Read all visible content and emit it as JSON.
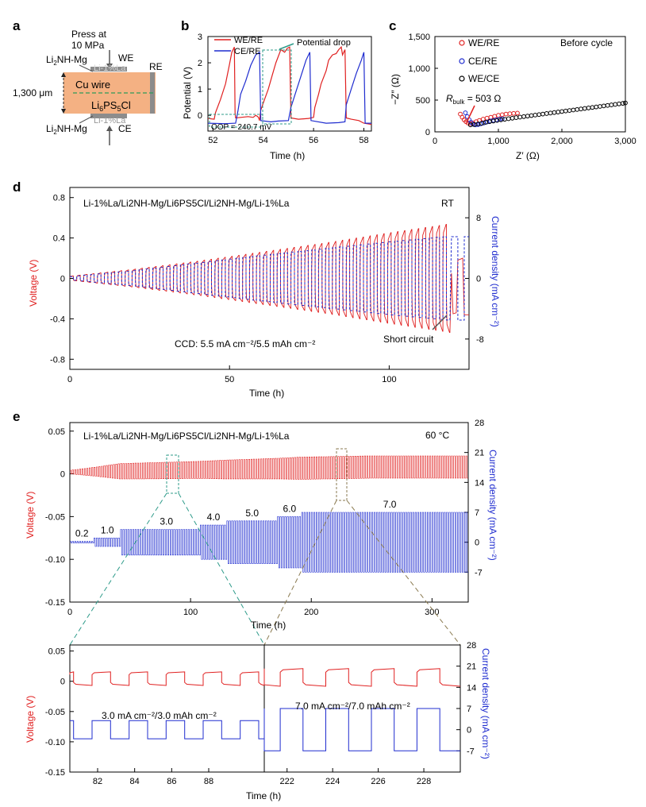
{
  "panels": {
    "a": {
      "letter": "a",
      "press_line1": "Press at",
      "press_line2": "10 MPa",
      "we": "WE",
      "re": "RE",
      "ce": "CE",
      "li_top": "Li-1%La",
      "li_bottom": "Li-1%La",
      "li2nh_top": "Li",
      "li2nh_top_sub": "2",
      "li2nh_top_rest": "NH-Mg",
      "li2nh_bottom": "Li",
      "li2nh_bottom_sub": "2",
      "li2nh_bottom_rest": "NH-Mg",
      "cu_wire": "Cu wire",
      "lps_main": "Li",
      "lps_sub1": "6",
      "lps_mid": "PS",
      "lps_sub2": "5",
      "lps_end": "Cl",
      "thickness": "1,300 μm",
      "colors": {
        "pellet": "#f4b183",
        "electrode": "#8c8c8c",
        "cu": "#2e9b5a"
      }
    },
    "b": {
      "letter": "b",
      "annotation_drop": "Potential drop",
      "annotation_oop": "OOP = 240.7 mV"
    },
    "c": {
      "letter": "c",
      "annotation": "Before cycle",
      "rbulk_main": "R",
      "rbulk_sub": "bulk",
      "rbulk_value": " = 503 Ω"
    },
    "d": {
      "letter": "d",
      "cell": "Li-1%La/Li2NH-Mg/Li6PS5Cl/Li2NH-Mg/Li-1%La",
      "temp": "RT",
      "ccd_text": "CCD: 5.5 mA cm⁻²/5.5 mAh cm⁻²",
      "short_circuit": "Short circuit"
    },
    "e": {
      "letter": "e",
      "cell": "Li-1%La/Li2NH-Mg/Li6PS5Cl/Li2NH-Mg/Li-1%La",
      "temp": "60 °C",
      "inset_left_label": "3.0 mA cm⁻²/3.0 mAh cm⁻²",
      "inset_right_label": "7.0 mA cm⁻²/7.0 mAh cm⁻²"
    }
  },
  "chart_data": [
    {
      "id": "b",
      "type": "line",
      "xlabel": "Time (h)",
      "ylabel": "Potential (V)",
      "xlim": [
        51.8,
        58.3
      ],
      "ylim": [
        -0.6,
        3.0
      ],
      "xticks": [
        52,
        54,
        56,
        58
      ],
      "yticks": [
        0,
        1,
        2,
        3
      ],
      "legend": [
        "WE/RE",
        "CE/RE"
      ],
      "series": [
        {
          "name": "WE/RE",
          "color": "#e02020",
          "x": [
            51.8,
            52.05,
            52.1,
            52.3,
            52.5,
            52.65,
            52.75,
            52.85,
            52.88,
            52.9,
            53.1,
            53.4,
            53.6,
            53.7,
            53.78,
            53.82,
            53.85,
            53.9,
            54.05,
            54.2,
            54.35,
            54.5,
            54.7,
            54.85,
            54.95,
            55.05,
            55.1,
            55.4,
            55.8,
            56.0,
            56.05,
            56.2,
            56.3,
            56.5,
            56.6,
            56.75,
            56.9,
            57.0,
            57.1,
            57.15,
            57.25,
            57.3,
            57.5,
            57.8,
            58.0,
            58.3
          ],
          "y": [
            -0.12,
            -0.15,
            0.1,
            0.6,
            1.2,
            1.9,
            2.4,
            2.6,
            0.1,
            -0.1,
            -0.08,
            -0.05,
            -0.08,
            0.0,
            -0.05,
            -0.1,
            -0.2,
            0.2,
            0.6,
            1.0,
            1.5,
            2.0,
            2.5,
            2.4,
            2.55,
            2.6,
            -0.1,
            -0.15,
            -0.12,
            -0.08,
            0.3,
            0.8,
            1.2,
            1.7,
            2.1,
            2.3,
            2.35,
            2.5,
            2.6,
            2.3,
            2.5,
            -0.1,
            -0.15,
            -0.2,
            -0.3,
            -0.35
          ]
        },
        {
          "name": "CE/RE",
          "color": "#1f2ccf",
          "x": [
            51.8,
            52.5,
            52.9,
            53.0,
            53.1,
            53.3,
            53.5,
            53.7,
            53.85,
            53.9,
            54.3,
            54.6,
            55.0,
            55.1,
            55.3,
            55.5,
            55.7,
            55.85,
            55.9,
            56.5,
            57.0,
            57.25,
            57.3,
            57.5,
            57.7,
            57.9,
            58.0,
            58.05,
            58.3
          ],
          "y": [
            -0.3,
            -0.32,
            -0.3,
            0.2,
            0.8,
            1.3,
            1.9,
            2.3,
            2.4,
            -0.2,
            -0.25,
            -0.22,
            -0.2,
            0.3,
            0.9,
            1.5,
            2.1,
            2.4,
            -0.2,
            -0.3,
            -0.28,
            -0.25,
            0.4,
            1.0,
            1.6,
            2.1,
            2.4,
            -0.3,
            -0.3
          ]
        }
      ]
    },
    {
      "id": "c",
      "type": "scatter",
      "xlabel": "Z′ (Ω)",
      "ylabel": "−Z″ (Ω)",
      "xlim": [
        0,
        3000
      ],
      "ylim": [
        0,
        1500
      ],
      "xticks": [
        0,
        1000,
        2000,
        3000
      ],
      "yticks": [
        0,
        500,
        1000,
        1500
      ],
      "legend": [
        "WE/RE",
        "CE/RE",
        "WE/CE"
      ],
      "series": [
        {
          "name": "WE/RE",
          "color": "#e02020",
          "x": [
            400,
            430,
            460,
            490,
            520,
            560,
            600,
            650,
            700,
            760,
            820,
            880,
            940,
            1000,
            1060,
            1120,
            1180,
            1240,
            1300
          ],
          "y": [
            280,
            230,
            190,
            160,
            140,
            130,
            140,
            160,
            180,
            200,
            215,
            230,
            245,
            260,
            270,
            280,
            285,
            290,
            295
          ]
        },
        {
          "name": "CE/RE",
          "color": "#1f2ccf",
          "x": [
            480,
            510,
            540,
            570,
            600,
            640,
            680,
            720,
            770,
            820,
            870,
            920,
            970,
            1020,
            1060
          ],
          "y": [
            300,
            240,
            190,
            150,
            120,
            110,
            115,
            125,
            140,
            155,
            170,
            180,
            190,
            200,
            205
          ]
        },
        {
          "name": "WE/CE",
          "color": "#000000",
          "x": [
            560,
            620,
            680,
            740,
            800,
            860,
            920,
            980,
            1040,
            1100,
            1160,
            1220,
            1280,
            1340,
            1400,
            1460,
            1520,
            1580,
            1640,
            1700,
            1760,
            1820,
            1880,
            1940,
            2000,
            2060,
            2120,
            2180,
            2240,
            2300,
            2360,
            2420,
            2480,
            2540,
            2600,
            2660,
            2720,
            2780,
            2840,
            2900,
            2960,
            3000
          ],
          "y": [
            110,
            115,
            125,
            135,
            150,
            160,
            170,
            180,
            190,
            198,
            207,
            215,
            224,
            232,
            240,
            248,
            256,
            264,
            272,
            280,
            288,
            296,
            304,
            312,
            320,
            328,
            336,
            344,
            352,
            360,
            368,
            376,
            384,
            392,
            400,
            408,
            416,
            424,
            432,
            440,
            448,
            455
          ]
        }
      ]
    },
    {
      "id": "d",
      "type": "line",
      "xlabel": "Time (h)",
      "ylabel": "Voltage (V)",
      "y2label": "Current density (mA cm⁻²)",
      "xlim": [
        0,
        125
      ],
      "ylim": [
        -0.9,
        0.9
      ],
      "y2lim": [
        -12,
        12
      ],
      "xticks": [
        0,
        50,
        100
      ],
      "yticks": [
        -0.8,
        -0.4,
        0,
        0.4,
        0.8
      ],
      "y2ticks": [
        -8,
        0,
        8
      ],
      "series": [
        {
          "name": "Voltage",
          "color": "#e02020",
          "envelope_x": [
            0,
            20,
            40,
            60,
            80,
            100,
            115,
            119
          ],
          "envelope_y": [
            0.02,
            0.09,
            0.17,
            0.26,
            0.35,
            0.45,
            0.52,
            0.54
          ],
          "cycles": 55
        },
        {
          "name": "Current density",
          "color": "#1f2ccf",
          "envelope_x": [
            0,
            20,
            40,
            60,
            80,
            100,
            118,
            125
          ],
          "envelope_y": [
            0.2,
            1.0,
            2.0,
            3.0,
            3.9,
            4.8,
            5.5,
            5.5
          ]
        }
      ]
    },
    {
      "id": "e",
      "type": "line",
      "xlabel": "Time (h)",
      "ylabel": "Voltage (V)",
      "y2label": "Current density (mA cm⁻²)",
      "xlim": [
        0,
        330
      ],
      "ylim": [
        -0.15,
        0.06
      ],
      "y2lim": [
        -14,
        28
      ],
      "xticks": [
        0,
        100,
        200,
        300
      ],
      "yticks": [
        -0.15,
        -0.1,
        -0.05,
        0,
        0.05
      ],
      "y2ticks": [
        -7,
        0,
        7,
        14,
        21,
        28
      ],
      "current_steps": [
        {
          "label": "0.2",
          "x0": 0,
          "x1": 20,
          "value": 0.2
        },
        {
          "label": "1.0",
          "x0": 20,
          "x1": 42,
          "value": 1.0
        },
        {
          "label": "3.0",
          "x0": 42,
          "x1": 108,
          "value": 3.0
        },
        {
          "label": "4.0",
          "x0": 108,
          "x1": 130,
          "value": 4.0
        },
        {
          "label": "5.0",
          "x0": 130,
          "x1": 172,
          "value": 5.0
        },
        {
          "label": "6.0",
          "x0": 172,
          "x1": 192,
          "value": 6.0
        },
        {
          "label": "7.0",
          "x0": 192,
          "x1": 330,
          "value": 7.0
        }
      ],
      "voltage_envelope": {
        "x": [
          0,
          20,
          42,
          108,
          130,
          172,
          192,
          330
        ],
        "amp": [
          0.002,
          0.005,
          0.009,
          0.01,
          0.011,
          0.012,
          0.013,
          0.013
        ]
      }
    },
    {
      "id": "e_inset_left",
      "type": "line",
      "xlabel": "Time (h)",
      "xlim": [
        80.5,
        91.0
      ],
      "ylim": [
        -0.15,
        0.06
      ],
      "xticks": [
        82,
        84,
        86,
        88
      ],
      "yticks": [
        -0.15,
        -0.1,
        -0.05,
        0,
        0.05
      ],
      "current": 3.0,
      "period": 2.0,
      "voltage_amp": 0.01
    },
    {
      "id": "e_inset_right",
      "type": "line",
      "xlabel": "Time (h)",
      "xlim": [
        221.0,
        229.6
      ],
      "ylim": [
        -14,
        28
      ],
      "xticks": [
        222,
        224,
        226,
        228
      ],
      "y2ticks": [
        -7,
        0,
        7,
        14,
        21,
        28
      ],
      "current": 7.0,
      "period": 2.0,
      "voltage_amp": 0.013
    }
  ]
}
